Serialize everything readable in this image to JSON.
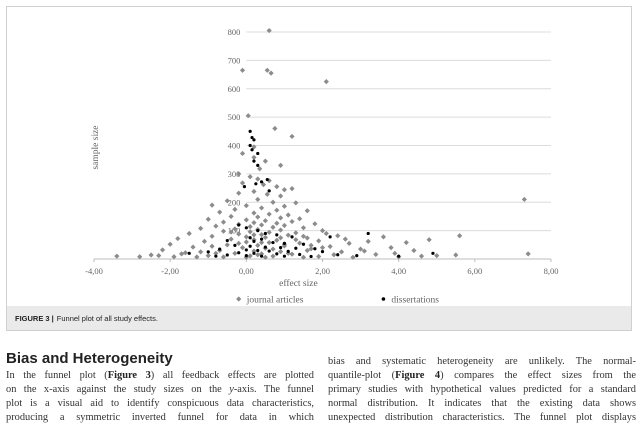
{
  "figure": {
    "caption_label": "FIGURE 3 |",
    "caption_text": "Funnel plot of all study effects."
  },
  "chart_data": {
    "type": "scatter",
    "xlabel": "effect size",
    "ylabel": "sample size",
    "xlim": [
      -4,
      8
    ],
    "ylim": [
      0,
      800
    ],
    "x_ticks": [
      "-4,00",
      "-2,00",
      "0,00",
      "2,00",
      "4,00",
      "6,00",
      "8,00"
    ],
    "y_ticks": [
      "100",
      "200",
      "300",
      "400",
      "500",
      "600",
      "700",
      "800"
    ],
    "grid": "horizontal",
    "legend_position": "bottom",
    "series": [
      {
        "name": "journal articles",
        "marker": "diamond",
        "color": "#8c8c8c",
        "points": [
          [
            0.6,
            805
          ],
          [
            -0.1,
            665
          ],
          [
            0.55,
            665
          ],
          [
            0.65,
            655
          ],
          [
            2.1,
            625
          ],
          [
            0.05,
            505
          ],
          [
            0.75,
            460
          ],
          [
            1.2,
            432
          ],
          [
            0.2,
            395
          ],
          [
            -0.1,
            372
          ],
          [
            0.2,
            358
          ],
          [
            0.5,
            345
          ],
          [
            0.9,
            330
          ],
          [
            0.35,
            318
          ],
          [
            -0.2,
            300
          ],
          [
            0.1,
            290
          ],
          [
            0.3,
            282
          ],
          [
            0.6,
            276
          ],
          [
            -0.1,
            268
          ],
          [
            0.45,
            262
          ],
          [
            0.8,
            255
          ],
          [
            1.2,
            248
          ],
          [
            1.0,
            244
          ],
          [
            0.2,
            238
          ],
          [
            -0.2,
            232
          ],
          [
            0.55,
            228
          ],
          [
            0.9,
            222
          ],
          [
            -0.5,
            205
          ],
          [
            0.3,
            210
          ],
          [
            0.7,
            200
          ],
          [
            1.3,
            198
          ],
          [
            -0.9,
            190
          ],
          [
            0.0,
            188
          ],
          [
            1.0,
            186
          ],
          [
            0.4,
            180
          ],
          [
            -0.3,
            175
          ],
          [
            0.8,
            172
          ],
          [
            1.6,
            170
          ],
          [
            -0.7,
            165
          ],
          [
            0.2,
            162
          ],
          [
            0.6,
            158
          ],
          [
            1.1,
            155
          ],
          [
            -0.4,
            150
          ],
          [
            0.3,
            148
          ],
          [
            0.9,
            145
          ],
          [
            1.4,
            142
          ],
          [
            -1.0,
            140
          ],
          [
            0.0,
            138
          ],
          [
            0.5,
            135
          ],
          [
            1.2,
            132
          ],
          [
            -0.6,
            130
          ],
          [
            0.2,
            128
          ],
          [
            0.8,
            126
          ],
          [
            1.8,
            124
          ],
          [
            -0.2,
            122
          ],
          [
            0.4,
            120
          ],
          [
            1.0,
            118
          ],
          [
            -0.8,
            116
          ],
          [
            0.1,
            114
          ],
          [
            0.7,
            112
          ],
          [
            1.5,
            110
          ],
          [
            -1.2,
            108
          ],
          [
            -0.3,
            106
          ],
          [
            0.3,
            104
          ],
          [
            0.9,
            102
          ],
          [
            2.0,
            100
          ],
          [
            -0.6,
            98
          ],
          [
            0.1,
            96
          ],
          [
            0.6,
            94
          ],
          [
            1.3,
            92
          ],
          [
            -1.5,
            90
          ],
          [
            -0.2,
            88
          ],
          [
            0.4,
            86
          ],
          [
            1.1,
            84
          ],
          [
            2.4,
            82
          ],
          [
            -0.9,
            80
          ],
          [
            0.0,
            78
          ],
          [
            0.5,
            76
          ],
          [
            1.6,
            74
          ],
          [
            -1.8,
            72
          ],
          [
            -0.4,
            70
          ],
          [
            0.2,
            68
          ],
          [
            0.8,
            66
          ],
          [
            1.9,
            64
          ],
          [
            -1.1,
            62
          ],
          [
            0.0,
            60
          ],
          [
            0.6,
            58
          ],
          [
            1.4,
            56
          ],
          [
            2.7,
            55
          ],
          [
            -2.0,
            52
          ],
          [
            -0.5,
            50
          ],
          [
            0.3,
            48
          ],
          [
            1.0,
            46
          ],
          [
            2.2,
            44
          ],
          [
            -1.4,
            42
          ],
          [
            -0.1,
            40
          ],
          [
            0.5,
            38
          ],
          [
            1.7,
            36
          ],
          [
            3.0,
            35
          ],
          [
            -2.2,
            32
          ],
          [
            -0.7,
            30
          ],
          [
            0.2,
            28
          ],
          [
            0.9,
            26
          ],
          [
            2.5,
            25
          ],
          [
            -1.6,
            22
          ],
          [
            -0.3,
            20
          ],
          [
            0.4,
            18
          ],
          [
            1.2,
            17
          ],
          [
            3.4,
            16
          ],
          [
            -2.5,
            14
          ],
          [
            -1.0,
            12
          ],
          [
            0.1,
            11
          ],
          [
            0.7,
            10
          ],
          [
            1.9,
            9
          ],
          [
            -3.4,
            10
          ],
          [
            -2.8,
            8
          ],
          [
            -1.9,
            8
          ],
          [
            -1.3,
            7
          ],
          [
            -0.6,
            7
          ],
          [
            0.0,
            6
          ],
          [
            0.5,
            6
          ],
          [
            1.5,
            6
          ],
          [
            2.8,
            6
          ],
          [
            4.0,
            8
          ],
          [
            4.6,
            10
          ],
          [
            5.0,
            12
          ],
          [
            5.5,
            14
          ],
          [
            3.8,
            40
          ],
          [
            4.2,
            58
          ],
          [
            4.8,
            68
          ],
          [
            5.6,
            82
          ],
          [
            3.2,
            62
          ],
          [
            3.6,
            78
          ],
          [
            7.3,
            210
          ],
          [
            7.4,
            18
          ],
          [
            2.1,
            90
          ],
          [
            2.6,
            70
          ],
          [
            3.1,
            28
          ],
          [
            3.9,
            20
          ],
          [
            4.4,
            30
          ],
          [
            1.6,
            30
          ],
          [
            1.1,
            20
          ],
          [
            2.3,
            15
          ],
          [
            0.3,
            15
          ],
          [
            -0.8,
            20
          ],
          [
            -1.7,
            18
          ],
          [
            -2.3,
            12
          ],
          [
            -1.2,
            25
          ],
          [
            0.9,
            75
          ],
          [
            1.3,
            68
          ],
          [
            1.7,
            48
          ],
          [
            2.0,
            40
          ],
          [
            -0.2,
            55
          ],
          [
            0.4,
            58
          ],
          [
            -0.9,
            45
          ],
          [
            0.7,
            35
          ],
          [
            1.0,
            52
          ],
          [
            1.5,
            80
          ],
          [
            0.2,
            85
          ],
          [
            -0.4,
            95
          ]
        ]
      },
      {
        "name": "dissertations",
        "marker": "circle",
        "color": "#000000",
        "points": [
          [
            0.1,
            450
          ],
          [
            0.15,
            428
          ],
          [
            0.2,
            420
          ],
          [
            0.1,
            400
          ],
          [
            0.15,
            385
          ],
          [
            0.3,
            372
          ],
          [
            0.2,
            345
          ],
          [
            0.3,
            330
          ],
          [
            0.55,
            280
          ],
          [
            0.4,
            272
          ],
          [
            0.25,
            265
          ],
          [
            -0.05,
            255
          ],
          [
            0.6,
            240
          ],
          [
            -0.2,
            120
          ],
          [
            0.0,
            110
          ],
          [
            0.3,
            100
          ],
          [
            0.5,
            90
          ],
          [
            0.8,
            85
          ],
          [
            1.2,
            78
          ],
          [
            0.1,
            75
          ],
          [
            0.4,
            70
          ],
          [
            -0.5,
            65
          ],
          [
            0.2,
            62
          ],
          [
            0.7,
            58
          ],
          [
            1.0,
            55
          ],
          [
            1.5,
            52
          ],
          [
            2.2,
            78
          ],
          [
            3.2,
            90
          ],
          [
            -0.3,
            48
          ],
          [
            0.1,
            45
          ],
          [
            0.5,
            42
          ],
          [
            0.9,
            40
          ],
          [
            1.3,
            38
          ],
          [
            1.8,
            36
          ],
          [
            -0.7,
            35
          ],
          [
            0.0,
            32
          ],
          [
            0.3,
            30
          ],
          [
            0.6,
            28
          ],
          [
            1.1,
            27
          ],
          [
            2.0,
            26
          ],
          [
            -1.0,
            25
          ],
          [
            -0.2,
            22
          ],
          [
            0.2,
            20
          ],
          [
            0.8,
            18
          ],
          [
            1.4,
            16
          ],
          [
            2.4,
            15
          ],
          [
            -0.5,
            14
          ],
          [
            0.0,
            12
          ],
          [
            0.4,
            10
          ],
          [
            1.0,
            10
          ],
          [
            1.7,
            9
          ],
          [
            -1.5,
            20
          ],
          [
            -0.8,
            10
          ],
          [
            4.9,
            20
          ],
          [
            4.0,
            10
          ],
          [
            2.9,
            12
          ]
        ]
      }
    ]
  },
  "article": {
    "section_title": "Bias and Heterogeneity",
    "left_lines": [
      [
        "In the funnel plot (",
        "Figure 3",
        ") all feedback effects are plotted"
      ],
      [
        "on the x-axis against the study sizes on the ",
        "y",
        "-axis. The funnel"
      ],
      [
        "plot is a visual aid to identify conspicuous data characteristics,"
      ],
      [
        "producing a symmetric inverted funnel for data in which"
      ]
    ],
    "right_lines": [
      [
        "bias and systematic heterogeneity are unlikely. The normal-"
      ],
      [
        "quantile-plot (",
        "Figure 4",
        ") compares the effect sizes from the"
      ],
      [
        "primary studies with hypothetical values predicted for a standard"
      ],
      [
        "normal distribution. It indicates that the existing data shows"
      ],
      [
        "unexpected distribution characteristics. The funnel plot displays"
      ]
    ]
  }
}
